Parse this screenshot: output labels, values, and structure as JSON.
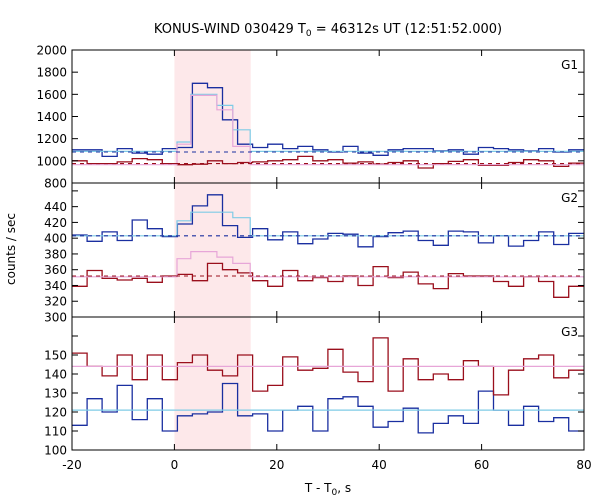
{
  "chart_data": {
    "type": "line",
    "title": {
      "pre": "KONUS-WIND 030429 T",
      "sub": "0",
      "post": " = 46312s UT (12:51:52.000)"
    },
    "xlabel": {
      "pre": "T - T",
      "sub": "0",
      "post": ", s"
    },
    "ylabel": "counts / sec",
    "xlim": [
      -20,
      80
    ],
    "xticks": [
      -20,
      0,
      20,
      40,
      60,
      80
    ],
    "highlight": {
      "x0": 0,
      "x1": 14.9,
      "color": "#fde8ea"
    },
    "colors": {
      "blue": "#1a2fa0",
      "red": "#9a0f1c",
      "cyan": "#7ecbe6",
      "pink": "#e7a6d8"
    },
    "panels": [
      {
        "label": "G1",
        "ylim": [
          800,
          2000
        ],
        "yticks": [
          800,
          1000,
          1200,
          1400,
          1600,
          1800,
          2000
        ],
        "series": [
          {
            "color": "blue",
            "width": 1.3,
            "step": true,
            "x": [
              -20,
              -17.06,
              -14.12,
              -11.18,
              -8.24,
              -5.3,
              -2.36,
              0.58,
              3.52,
              6.46,
              9.4,
              12.34,
              15.28,
              18.22,
              21.16,
              24.1,
              27.04,
              29.98,
              32.92,
              35.86,
              38.8,
              41.74,
              44.68,
              47.62,
              50.56,
              53.5,
              56.44,
              59.38,
              62.32,
              65.26,
              68.2,
              71.14,
              74.08,
              77.02,
              79.96
            ],
            "y": [
              1100,
              1100,
              1040,
              1110,
              1070,
              1060,
              1110,
              1120,
              1700,
              1660,
              1370,
              1150,
              1120,
              1150,
              1110,
              1130,
              1100,
              1080,
              1130,
              1070,
              1050,
              1100,
              1110,
              1110,
              1090,
              1100,
              1060,
              1120,
              1110,
              1100,
              1090,
              1110,
              1080,
              1100,
              1100
            ]
          },
          {
            "color": "red",
            "width": 1.3,
            "step": true,
            "x": [
              -20,
              -17.06,
              -14.12,
              -11.18,
              -8.24,
              -5.3,
              -2.36,
              0.58,
              3.52,
              6.46,
              9.4,
              12.34,
              15.28,
              18.22,
              21.16,
              24.1,
              27.04,
              29.98,
              32.92,
              35.86,
              38.8,
              41.74,
              44.68,
              47.62,
              50.56,
              53.5,
              56.44,
              59.38,
              62.32,
              65.26,
              68.2,
              71.14,
              74.08,
              77.02,
              79.96
            ],
            "y": [
              1000,
              975,
              975,
              990,
              1020,
              1010,
              975,
              965,
              970,
              1000,
              975,
              985,
              990,
              1000,
              1010,
              1040,
              1000,
              1010,
              980,
              990,
              970,
              985,
              1000,
              935,
              975,
              995,
              1010,
              960,
              960,
              985,
              1010,
              1000,
              950,
              980,
              980
            ]
          },
          {
            "color": "cyan",
            "width": 1.2,
            "step": true,
            "x": [
              -20,
              0,
              0.5,
              3.2,
              8.3,
              11.4,
              14.8,
              80
            ],
            "y": [
              1085,
              1085,
              1170,
              1600,
              1500,
              1280,
              1085,
              1085
            ]
          },
          {
            "color": "pink",
            "width": 1.2,
            "step": true,
            "x": [
              -20,
              0,
              0.5,
              3.2,
              8.3,
              11.4,
              14.8,
              80
            ],
            "y": [
              965,
              965,
              1150,
              1590,
              1460,
              1130,
              965,
              965
            ]
          },
          {
            "color": "blue",
            "width": 1.1,
            "dash": "4,4",
            "step": false,
            "x": [
              -20,
              80
            ],
            "y": [
              1080,
              1080
            ]
          },
          {
            "color": "red",
            "width": 1.1,
            "dash": "4,4",
            "step": false,
            "x": [
              -20,
              80
            ],
            "y": [
              975,
              975
            ]
          }
        ]
      },
      {
        "label": "G2",
        "ylim": [
          300,
          470
        ],
        "yticks": [
          300,
          320,
          340,
          360,
          380,
          400,
          420,
          440,
          460
        ],
        "series": [
          {
            "color": "blue",
            "width": 1.3,
            "step": true,
            "x": [
              -20,
              -17.06,
              -14.12,
              -11.18,
              -8.24,
              -5.3,
              -2.36,
              0.58,
              3.52,
              6.46,
              9.4,
              12.34,
              15.28,
              18.22,
              21.16,
              24.1,
              27.04,
              29.98,
              32.92,
              35.86,
              38.8,
              41.74,
              44.68,
              47.62,
              50.56,
              53.5,
              56.44,
              59.38,
              62.32,
              65.26,
              68.2,
              71.14,
              74.08,
              77.02,
              79.96
            ],
            "y": [
              404,
              396,
              408,
              397,
              423,
              412,
              402,
              418,
              441,
              455,
              416,
              401,
              412,
              398,
              408,
              393,
              399,
              406,
              405,
              389,
              402,
              407,
              409,
              397,
              391,
              409,
              408,
              394,
              403,
              390,
              397,
              408,
              392,
              406,
              406
            ]
          },
          {
            "color": "red",
            "width": 1.3,
            "step": true,
            "x": [
              -20,
              -17.06,
              -14.12,
              -11.18,
              -8.24,
              -5.3,
              -2.36,
              0.58,
              3.52,
              6.46,
              9.4,
              12.34,
              15.28,
              18.22,
              21.16,
              24.1,
              27.04,
              29.98,
              32.92,
              35.86,
              38.8,
              41.74,
              44.68,
              47.62,
              50.56,
              53.5,
              56.44,
              59.38,
              62.32,
              65.26,
              68.2,
              71.14,
              74.08,
              77.02,
              79.96
            ],
            "y": [
              339,
              359,
              349,
              347,
              349,
              344,
              352,
              354,
              346,
              368,
              360,
              356,
              346,
              339,
              359,
              346,
              350,
              345,
              352,
              340,
              364,
              350,
              357,
              342,
              336,
              355,
              352,
              352,
              345,
              339,
              351,
              345,
              325,
              339,
              339
            ]
          },
          {
            "color": "cyan",
            "width": 1.2,
            "step": true,
            "x": [
              -20,
              0,
              0.5,
              3.2,
              8.3,
              11.4,
              14.8,
              80
            ],
            "y": [
              403,
              403,
              422,
              433,
              433,
              426,
              403,
              403
            ]
          },
          {
            "color": "pink",
            "width": 1.2,
            "step": true,
            "x": [
              -20,
              0,
              0.5,
              3.2,
              8.3,
              11.4,
              14.8,
              80
            ],
            "y": [
              351,
              351,
              374,
              383,
              376,
              368,
              351,
              351
            ]
          },
          {
            "color": "blue",
            "width": 1.1,
            "dash": "4,4",
            "step": false,
            "x": [
              -20,
              80
            ],
            "y": [
              403,
              403
            ]
          },
          {
            "color": "red",
            "width": 1.1,
            "dash": "4,4",
            "step": false,
            "x": [
              -20,
              80
            ],
            "y": [
              352,
              352
            ]
          }
        ]
      },
      {
        "label": "G3",
        "ylim": [
          100,
          170
        ],
        "yticks": [
          100,
          110,
          120,
          130,
          140,
          150,
          160
        ],
        "series": [
          {
            "color": "blue",
            "width": 1.3,
            "step": true,
            "x": [
              -20,
              -17.06,
              -14.12,
              -11.18,
              -8.24,
              -5.3,
              -2.36,
              0.58,
              3.52,
              6.46,
              9.4,
              12.34,
              15.28,
              18.22,
              21.16,
              24.1,
              27.04,
              29.98,
              32.92,
              35.86,
              38.8,
              41.74,
              44.68,
              47.62,
              50.56,
              53.5,
              56.44,
              59.38,
              62.32,
              65.26,
              68.2,
              71.14,
              74.08,
              77.02,
              79.96
            ],
            "y": [
              113,
              127,
              120,
              134,
              116,
              127,
              110,
              118,
              119,
              120,
              135,
              118,
              119,
              110,
              121,
              123,
              110,
              127,
              128,
              123,
              112,
              115,
              122,
              109,
              114,
              118,
              114,
              131,
              121,
              113,
              123,
              115,
              117,
              110,
              110
            ]
          },
          {
            "color": "red",
            "width": 1.3,
            "step": true,
            "x": [
              -20,
              -17.06,
              -14.12,
              -11.18,
              -8.24,
              -5.3,
              -2.36,
              0.58,
              3.52,
              6.46,
              9.4,
              12.34,
              15.28,
              18.22,
              21.16,
              24.1,
              27.04,
              29.98,
              32.92,
              35.86,
              38.8,
              41.74,
              44.68,
              47.62,
              50.56,
              53.5,
              56.44,
              59.38,
              62.32,
              65.26,
              68.2,
              71.14,
              74.08,
              77.02,
              79.96
            ],
            "y": [
              151,
              144,
              139,
              150,
              137,
              150,
              137,
              146,
              150,
              142,
              139,
              150,
              131,
              134,
              149,
              142,
              143,
              153,
              141,
              136,
              159,
              131,
              148,
              137,
              140,
              137,
              147,
              144,
              129,
              142,
              148,
              150,
              138,
              142,
              142
            ]
          },
          {
            "color": "pink",
            "width": 1.2,
            "step": false,
            "x": [
              -20,
              80
            ],
            "y": [
              144,
              144
            ]
          },
          {
            "color": "cyan",
            "width": 1.2,
            "step": false,
            "x": [
              -20,
              80
            ],
            "y": [
              121,
              121
            ]
          }
        ]
      }
    ]
  }
}
